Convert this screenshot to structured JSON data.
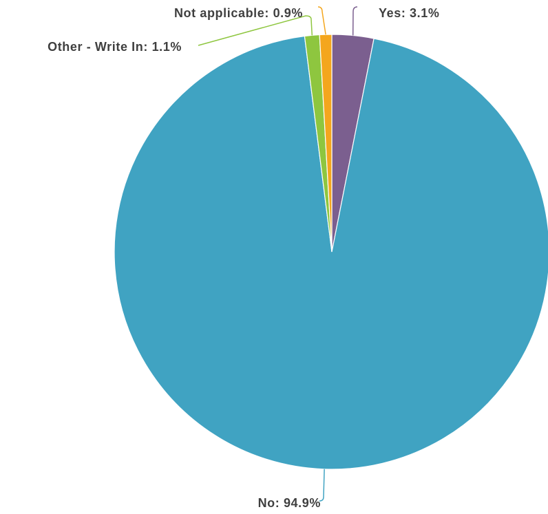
{
  "chart_data": {
    "type": "pie",
    "title": "",
    "slices": [
      {
        "label": "Yes",
        "value": 3.1,
        "display": "Yes: 3.1%",
        "color": "#7b5f8f"
      },
      {
        "label": "No",
        "value": 94.9,
        "display": "No: 94.9%",
        "color": "#40a3c2"
      },
      {
        "label": "Other - Write In",
        "value": 1.1,
        "display": "Other - Write In: 1.1%",
        "color": "#8ec63f"
      },
      {
        "label": "Not applicable",
        "value": 0.9,
        "display": "Not applicable: 0.9%",
        "color": "#f4a61d"
      }
    ],
    "start_angle_deg": 0,
    "direction": "clockwise",
    "labels_with_leader_lines": true
  }
}
